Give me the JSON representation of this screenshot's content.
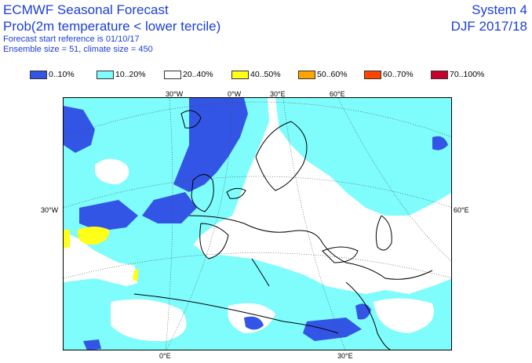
{
  "header": {
    "title": "ECMWF Seasonal Forecast",
    "subtitle": "Prob(2m temperature < lower tercile)",
    "start_ref": "Forecast start reference is 01/10/17",
    "ensemble": "Ensemble size = 51, climate size = 450",
    "system": "System 4",
    "season": "DJF 2017/18"
  },
  "legend": [
    {
      "label": "0..10%",
      "color": "#3355e6"
    },
    {
      "label": "10..20%",
      "color": "#7ffcfc"
    },
    {
      "label": "20..40%",
      "color": "#ffffff"
    },
    {
      "label": "40..50%",
      "color": "#ffff1a"
    },
    {
      "label": "50..60%",
      "color": "#ffa500"
    },
    {
      "label": "60..70%",
      "color": "#ff4400"
    },
    {
      "label": "70..100%",
      "color": "#c8002d"
    }
  ],
  "map_labels": {
    "top": [
      "30°W",
      "0°W",
      "30°E",
      "60°E"
    ],
    "left": "30°W",
    "right": "60°E",
    "bottom": [
      "0°E",
      "30°E"
    ]
  }
}
